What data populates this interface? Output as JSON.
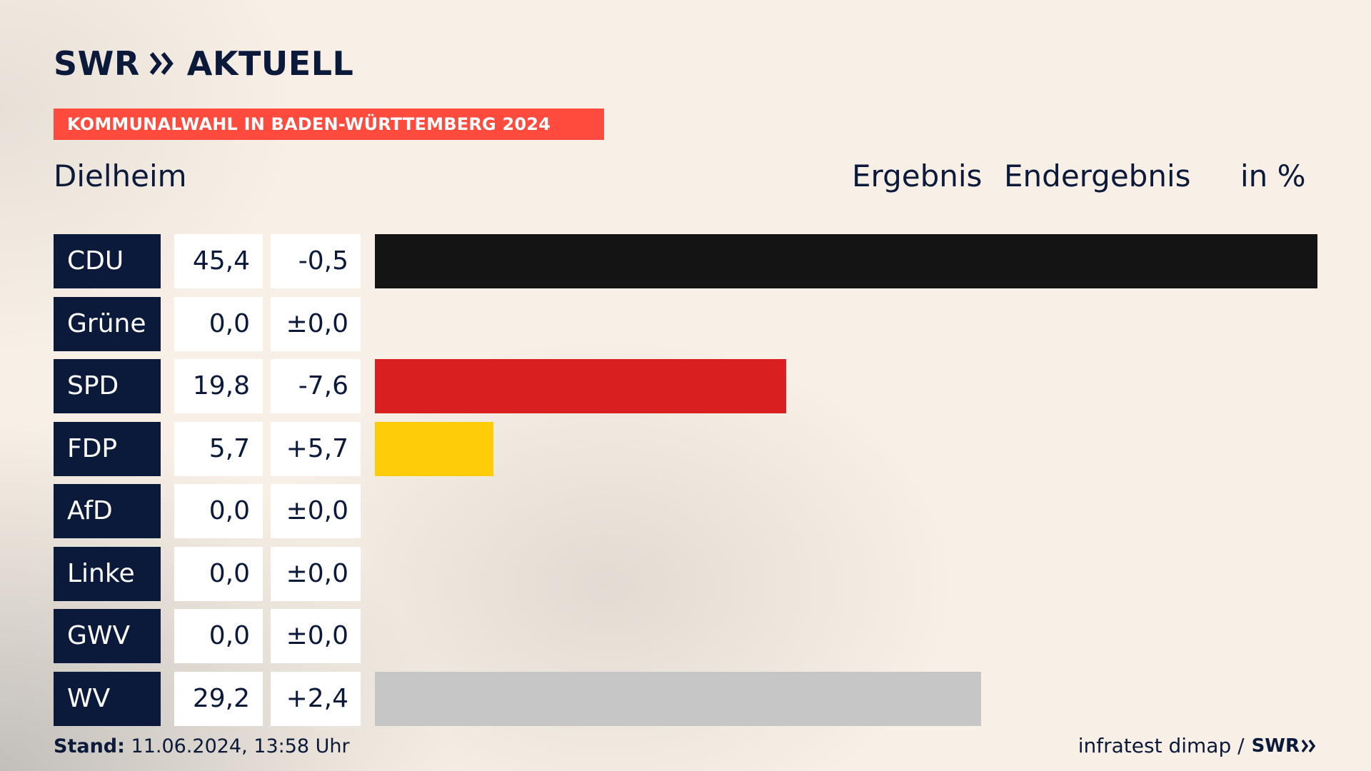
{
  "brand": {
    "name": "SWR",
    "product": "AKTUELL"
  },
  "banner": "KOMMUNALWAHL IN BADEN-WÜRTTEMBERG 2024",
  "place": "Dielheim",
  "header": {
    "result_label": "Ergebnis",
    "final_label": "Endergebnis",
    "unit_label": "in %"
  },
  "footer": {
    "stand_label": "Stand:",
    "stand_value": "11.06.2024, 13:58 Uhr",
    "source": "infratest dimap /",
    "source_brand": "SWR"
  },
  "chart_data": {
    "type": "bar",
    "orientation": "horizontal",
    "categories": [
      "CDU",
      "Grüne",
      "SPD",
      "FDP",
      "AfD",
      "Linke",
      "GWV",
      "WV"
    ],
    "values": [
      45.4,
      0.0,
      19.8,
      5.7,
      0.0,
      0.0,
      0.0,
      29.2
    ],
    "values_text": [
      "45,4",
      "0,0",
      "19,8",
      "5,7",
      "0,0",
      "0,0",
      "0,0",
      "29,2"
    ],
    "changes": [
      -0.5,
      0.0,
      -7.6,
      5.7,
      0.0,
      0.0,
      0.0,
      2.4
    ],
    "changes_text": [
      "-0,5",
      "±0,0",
      "-7,6",
      "+5,7",
      "±0,0",
      "±0,0",
      "±0,0",
      "+2,4"
    ],
    "colors": [
      "#141414",
      "#46962b",
      "#d9201e",
      "#ffcc0a",
      "#1da1de",
      "#be3075",
      "#7a7a7a",
      "#c6c6c6"
    ],
    "xlim": [
      0,
      45.4
    ],
    "grid": false,
    "legend": "none"
  }
}
